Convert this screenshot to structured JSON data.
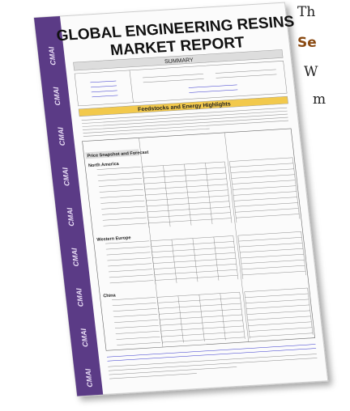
{
  "cover": {
    "brand": "CMAI",
    "title_line1": "GLOBAL ENGINEERING RESINS",
    "title_line2": "MARKET REPORT",
    "subtitle": "SUMMARY",
    "highlights_heading": "Feedstocks and Energy Highlights",
    "price_heading": "Price Snapshot and Forecast",
    "regions": [
      "North America",
      "Western Europe",
      "China"
    ]
  },
  "side_text": {
    "lines": [
      "Th",
      "Se",
      "W",
      "m"
    ]
  }
}
